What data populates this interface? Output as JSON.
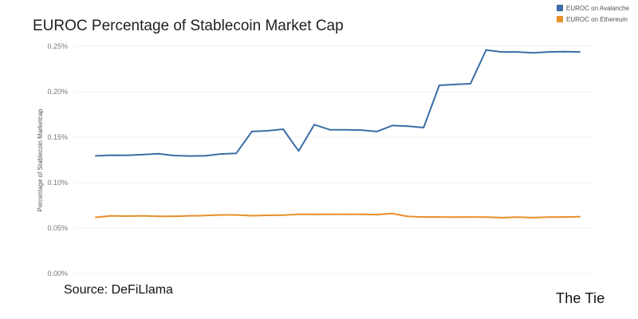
{
  "chart_data": {
    "type": "line",
    "title": "EUROC Percentage of Stablecoin Market Cap",
    "xlabel": "",
    "ylabel": "Percentage of Stablecoin Marketcap",
    "ylim": [
      0,
      0.26
    ],
    "yticks": [
      0,
      0.05,
      0.1,
      0.15,
      0.2,
      0.25
    ],
    "ytick_labels": [
      "0.00%",
      "0.05%",
      "0.10%",
      "0.15%",
      "0.20%",
      "0.25%"
    ],
    "grid": true,
    "legend_position": "top-right",
    "x": [
      1,
      2,
      3,
      4,
      5,
      6,
      7,
      8,
      9,
      10,
      11,
      12,
      13,
      14,
      15,
      16,
      17,
      18,
      19,
      20,
      21,
      22,
      23,
      24,
      25,
      26,
      27,
      28,
      29,
      30,
      31,
      32
    ],
    "series": [
      {
        "name": "EUROC on Avalanche",
        "color": "#3a6ea5",
        "values": [
          0.1295,
          0.1302,
          0.13,
          0.1308,
          0.1318,
          0.1298,
          0.1293,
          0.1295,
          0.1315,
          0.1322,
          0.1562,
          0.157,
          0.1588,
          0.1348,
          0.1638,
          0.1582,
          0.1582,
          0.1578,
          0.1562,
          0.1628,
          0.162,
          0.1605,
          0.207,
          0.208,
          0.2088,
          0.2458,
          0.2438,
          0.2438,
          0.2428,
          0.2438,
          0.244,
          0.2438
        ]
      },
      {
        "name": "EUROC on Ethereum",
        "color": "#e8902a",
        "values": [
          0.0618,
          0.0635,
          0.0632,
          0.0635,
          0.063,
          0.063,
          0.0635,
          0.0638,
          0.0645,
          0.0645,
          0.0636,
          0.064,
          0.0643,
          0.0652,
          0.065,
          0.0652,
          0.0652,
          0.0652,
          0.0648,
          0.066,
          0.0628,
          0.0622,
          0.0622,
          0.062,
          0.0622,
          0.062,
          0.0615,
          0.062,
          0.0615,
          0.062,
          0.0622,
          0.0625
        ]
      }
    ]
  },
  "footer": {
    "source": "Source: DeFiLlama",
    "logo": "The Tie"
  }
}
